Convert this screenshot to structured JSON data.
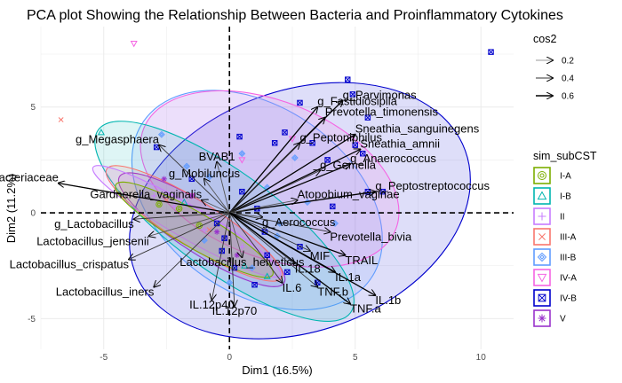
{
  "chart_data": {
    "type": "scatter",
    "title": "PCA plot Showing the Relationship Between Bacteria and Proinflammatory Cytokines",
    "xlabel": "Dim1 (16.5%)",
    "ylabel": "Dim2 (11.2%)",
    "xlim": [
      -7.5,
      11.3
    ],
    "ylim": [
      -6.45,
      8.8
    ],
    "xticks": [
      -5,
      0,
      5,
      10
    ],
    "yticks": [
      -5,
      0,
      5
    ],
    "grid": true,
    "legend_position": "right",
    "variables": [
      {
        "name": "g_Parvimonas",
        "x": 4.5,
        "y": 5.3
      },
      {
        "name": "g_Fastidiosipila",
        "x": 3.5,
        "y": 5.0
      },
      {
        "name": "Prevotella_timonensis",
        "x": 3.8,
        "y": 4.5
      },
      {
        "name": "Sneathia_sanguinegens",
        "x": 5.0,
        "y": 3.7
      },
      {
        "name": "g_Megasphaera",
        "x": -2.8,
        "y": 3.2
      },
      {
        "name": "g_Peptoniphilus",
        "x": 2.8,
        "y": 3.3
      },
      {
        "name": "Sneathia_amnii",
        "x": 5.2,
        "y": 3.0
      },
      {
        "name": "BVAB1",
        "x": -0.5,
        "y": 2.4
      },
      {
        "name": "g_Anaerococcus",
        "x": 4.8,
        "y": 2.3
      },
      {
        "name": "g_Gemella",
        "x": 3.6,
        "y": 2.0
      },
      {
        "name": "f_Bifidobacteriaceae",
        "x": -6.8,
        "y": 1.4
      },
      {
        "name": "g_Mobiluncus",
        "x": -1.0,
        "y": 1.6
      },
      {
        "name": "g_Peptostreptococcus",
        "x": 5.8,
        "y": 1.0
      },
      {
        "name": "Gardnerella_vaginalis",
        "x": -1.1,
        "y": 0.6
      },
      {
        "name": "Atopobium_vaginae",
        "x": 2.7,
        "y": 0.6
      },
      {
        "name": "g_Lactobacillus",
        "x": -3.8,
        "y": -0.3
      },
      {
        "name": "g_Aerococcus",
        "x": 1.3,
        "y": -0.2
      },
      {
        "name": "Lactobacillus_jensenii",
        "x": -3.2,
        "y": -1.1
      },
      {
        "name": "Prevotella_bivia",
        "x": 4.0,
        "y": -0.9
      },
      {
        "name": "MIF",
        "x": 3.2,
        "y": -1.8
      },
      {
        "name": "TRAIL",
        "x": 4.6,
        "y": -2.0
      },
      {
        "name": "Lactobacillus_crispatus",
        "x": -4.0,
        "y": -2.2
      },
      {
        "name": "Lactobacillus_helveticus",
        "x": 0.5,
        "y": -2.1
      },
      {
        "name": "IL.18",
        "x": 2.6,
        "y": -2.4
      },
      {
        "name": "IL.1a",
        "x": 4.2,
        "y": -2.8
      },
      {
        "name": "IL.6",
        "x": 2.1,
        "y": -3.3
      },
      {
        "name": "TNF.b",
        "x": 3.5,
        "y": -3.5
      },
      {
        "name": "IL.1b",
        "x": 5.8,
        "y": -3.9
      },
      {
        "name": "Lactobacillus_iners",
        "x": -3.0,
        "y": -3.5
      },
      {
        "name": "IL.12p40",
        "x": -0.7,
        "y": -4.1
      },
      {
        "name": "IL.12p70",
        "x": 0.2,
        "y": -4.4
      },
      {
        "name": "TNF.a",
        "x": 4.8,
        "y": -4.3
      }
    ],
    "series": [
      {
        "name": "I-A",
        "color": "#7CAE00",
        "shape": "circle",
        "ellipse": {
          "cx": -1.4,
          "cy": -0.8,
          "rx": 3.6,
          "ry": 0.7,
          "angle": -30
        },
        "points": [
          [
            -2.0,
            0.2
          ],
          [
            -1.2,
            -0.6
          ],
          [
            -2.8,
            0.4
          ]
        ]
      },
      {
        "name": "I-B",
        "color": "#00B5B0",
        "shape": "triangle",
        "ellipse": {
          "cx": -0.2,
          "cy": -0.4,
          "rx": 6.2,
          "ry": 2.0,
          "angle": -36
        },
        "points": [
          [
            -5.1,
            3.8
          ],
          [
            1.5,
            -3.0
          ],
          [
            -1.8,
            0.5
          ],
          [
            0.6,
            -2.5
          ]
        ]
      },
      {
        "name": "II",
        "color": "#C77CFF",
        "shape": "plus",
        "ellipse": {
          "cx": -1.7,
          "cy": -0.4,
          "rx": 4.3,
          "ry": 0.65,
          "angle": -30
        },
        "points": [
          [
            -3.0,
            0.8
          ],
          [
            -1.0,
            -0.8
          ],
          [
            -2.2,
            0.3
          ],
          [
            0.5,
            -1.6
          ]
        ]
      },
      {
        "name": "III-A",
        "color": "#F8766D",
        "shape": "x",
        "ellipse": {
          "cx": -1.4,
          "cy": -0.5,
          "rx": 4.1,
          "ry": 0.9,
          "angle": -32
        },
        "points": [
          [
            -6.7,
            4.4
          ],
          [
            -2.5,
            0.6
          ],
          [
            -0.8,
            -0.8
          ]
        ]
      },
      {
        "name": "III-B",
        "color": "#619CFF",
        "shape": "diamond",
        "ellipse": {
          "cx": 1.1,
          "cy": 0.6,
          "rx": 5.5,
          "ry": 3.7,
          "angle": -35
        },
        "points": [
          [
            -2.7,
            3.7
          ],
          [
            -1.7,
            2.2
          ],
          [
            -0.8,
            1.7
          ],
          [
            0.5,
            2.8
          ],
          [
            1.5,
            1.2
          ],
          [
            3.1,
            0.5
          ],
          [
            0.9,
            -2.6
          ],
          [
            -1.0,
            -1.3
          ],
          [
            2.0,
            -0.5
          ],
          [
            0.0,
            -3.3
          ],
          [
            4.2,
            -0.5
          ],
          [
            2.6,
            2.6
          ],
          [
            1.9,
            -1.1
          ]
        ]
      },
      {
        "name": "IV-A",
        "color": "#F564E3",
        "shape": "triangle-down",
        "ellipse": {
          "cx": 1.6,
          "cy": 1.6,
          "rx": 5.4,
          "ry": 3.1,
          "angle": -22
        },
        "points": [
          [
            -3.8,
            8.0
          ],
          [
            0.5,
            2.5
          ],
          [
            2.5,
            3.5
          ],
          [
            -1.5,
            0.8
          ]
        ]
      },
      {
        "name": "IV-B",
        "color": "#0000CD",
        "shape": "square-x",
        "ellipse": {
          "cx": 2.8,
          "cy": 0.1,
          "rx": 7.0,
          "ry": 4.8,
          "angle": 20
        },
        "points": [
          [
            10.4,
            7.6
          ],
          [
            4.7,
            6.3
          ],
          [
            4.9,
            5.6
          ],
          [
            5.5,
            4.5
          ],
          [
            2.8,
            5.2
          ],
          [
            1.8,
            3.3
          ],
          [
            -2.9,
            3.1
          ],
          [
            2.2,
            3.8
          ],
          [
            5.0,
            3.2
          ],
          [
            5.3,
            2.8
          ],
          [
            3.9,
            2.5
          ],
          [
            5.5,
            1.0
          ],
          [
            -1.5,
            1.6
          ],
          [
            0.5,
            1.0
          ],
          [
            4.1,
            0.3
          ],
          [
            -0.5,
            -0.5
          ],
          [
            1.4,
            -0.9
          ],
          [
            2.8,
            -1.6
          ],
          [
            1.5,
            -2.0
          ],
          [
            1.0,
            -3.4
          ],
          [
            3.5,
            -3.3
          ],
          [
            -0.3,
            -1.8
          ],
          [
            0.2,
            -2.6
          ],
          [
            2.3,
            -2.8
          ],
          [
            6.1,
            1.0
          ],
          [
            0.4,
            3.6
          ],
          [
            -0.2,
            -1.2
          ],
          [
            1.1,
            0.2
          ],
          [
            3.3,
            3.3
          ]
        ]
      },
      {
        "name": "V",
        "color": "#9933CC",
        "shape": "star",
        "ellipse": {
          "cx": -1.1,
          "cy": -0.8,
          "rx": 3.9,
          "ry": 0.95,
          "angle": -33
        },
        "points": [
          [
            -1.5,
            0.8
          ],
          [
            -2.6,
            1.6
          ],
          [
            0.3,
            -2.0
          ],
          [
            -0.5,
            -0.9
          ]
        ]
      }
    ],
    "size_legend": {
      "title": "cos2",
      "values": [
        "0.2",
        "0.4",
        "0.6"
      ]
    },
    "color_legend_title": "sim_subCST"
  }
}
